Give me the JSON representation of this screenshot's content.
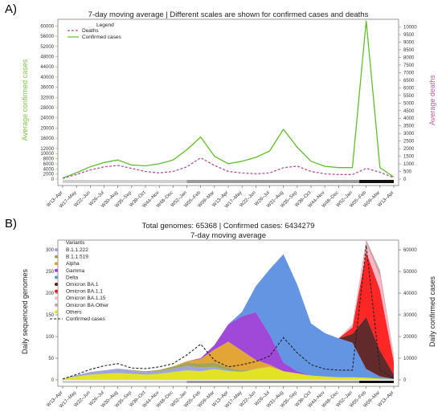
{
  "chart_data": [
    {
      "panel_label": "A)",
      "type": "line",
      "title": "7-day moving average | Different scales are shown for confirmed cases and deaths",
      "ylabel_left": "Average confirmed cases",
      "ylabel_right": "Average deaths",
      "ylim_left": [
        0,
        62000
      ],
      "ylim_right": [
        0,
        10400
      ],
      "yticks_left": [
        "0",
        "2000",
        "4000",
        "6000",
        "8000",
        "10000",
        "12000",
        "16000",
        "20000",
        "24000",
        "28000",
        "32000",
        "36000",
        "40000",
        "44000",
        "48000",
        "52000",
        "56000",
        "60000"
      ],
      "yticks_right": [
        "0",
        "500",
        "1000",
        "1500",
        "2000",
        "2500",
        "3000",
        "3500",
        "4000",
        "4500",
        "5000",
        "5500",
        "6000",
        "6500",
        "7000",
        "7500",
        "8000",
        "8500",
        "9000",
        "9500",
        "10000"
      ],
      "x_ticks": [
        "W13–Apr",
        "W17–May",
        "W22–Jun",
        "W26–Jul",
        "W30–Aug",
        "W35–Sep",
        "W39–Oct",
        "W44–Nov",
        "W48–Dec",
        "W52–Jan",
        "W05–Feb",
        "W09–Mar",
        "W13–Apr",
        "W17–May",
        "W22–Jun",
        "W26–Jul",
        "W31–Aug",
        "W35–Sep",
        "W39–Oct",
        "W44–Nov",
        "W48–Dec",
        "W52–Jan",
        "W05–Feb",
        "W09–Mar",
        "W13–Apr"
      ],
      "legend": {
        "title": "Legend",
        "position": "top-left",
        "entries": [
          "Deaths",
          "Confirmed cases"
        ]
      },
      "colors": {
        "confirmed": "#5fbf2a",
        "deaths": "#b0559a",
        "left_axis": "#7dc443",
        "right_axis": "#c25ba6"
      },
      "series": [
        {
          "name": "Confirmed cases",
          "axis": "left",
          "style": "solid",
          "x": [
            0,
            1,
            2,
            3,
            4,
            5,
            6,
            7,
            8,
            9,
            10,
            11,
            12,
            13,
            14,
            15,
            16,
            17,
            18,
            19,
            20,
            21,
            22,
            23,
            24
          ],
          "values": [
            400,
            2500,
            4800,
            6500,
            7500,
            5500,
            5200,
            6000,
            7500,
            11500,
            16500,
            9000,
            6000,
            7000,
            8500,
            11000,
            19500,
            12500,
            7000,
            5000,
            4500,
            4500,
            62000,
            4500,
            800
          ]
        },
        {
          "name": "Deaths",
          "axis": "right",
          "style": "dashed",
          "x": [
            0,
            1,
            2,
            3,
            4,
            5,
            6,
            7,
            8,
            9,
            10,
            11,
            12,
            13,
            14,
            15,
            16,
            17,
            18,
            19,
            20,
            21,
            22,
            23,
            24
          ],
          "values": [
            50,
            300,
            600,
            800,
            900,
            700,
            500,
            400,
            500,
            800,
            1400,
            900,
            500,
            400,
            350,
            400,
            750,
            850,
            500,
            350,
            300,
            300,
            700,
            450,
            100
          ]
        }
      ]
    },
    {
      "panel_label": "B)",
      "type": "area",
      "title": "Total genomes: 65368 | Confirmed cases: 6434279",
      "subtitle": "7-day moving average",
      "ylabel_left": "Daily sequenced genomes",
      "ylabel_right": "Daily confirmed cases",
      "ylim_left": [
        0,
        315
      ],
      "ylim_right": [
        0,
        63000
      ],
      "yticks_left": [
        "0",
        "50",
        "100",
        "150",
        "200",
        "250",
        "300"
      ],
      "yticks_right": [
        "0",
        "10000",
        "20000",
        "30000",
        "40000",
        "50000",
        "60000"
      ],
      "x_ticks": [
        "W13–Apr",
        "W17–May",
        "W22–Jun",
        "W26–Jul",
        "W30–Aug",
        "W35–Sep",
        "W39–Oct",
        "W44–Nov",
        "W48–Dec",
        "W52–Jan",
        "W05–Feb",
        "W09–Mar",
        "W13–Apr",
        "W17–May",
        "W22–Jun",
        "W26–Jul",
        "W31–Aug",
        "W35–Sep",
        "W39–Oct",
        "W44–Nov",
        "W48–Dec",
        "W52–Jan",
        "W05–Feb",
        "W09–Mar",
        "W13–Apr"
      ],
      "legend": {
        "title": "Variants",
        "position": "top-left",
        "entries": [
          {
            "name": "B.1.1.222",
            "color": "#9aa0d8"
          },
          {
            "name": "B.1.1.519",
            "color": "#a0a050"
          },
          {
            "name": "Alpha",
            "color": "#e2a12b"
          },
          {
            "name": "Gamma",
            "color": "#9b3fd6"
          },
          {
            "name": "Delta",
            "color": "#5b8fe2"
          },
          {
            "name": "Omicron BA.1",
            "color": "#5a1f1f"
          },
          {
            "name": "Omicron BA.1.1",
            "color": "#ff1a1a"
          },
          {
            "name": "Omicron BA.1.15",
            "color": "#ffb3c6"
          },
          {
            "name": "Omicron BA.Other",
            "color": "#c8a0a0"
          },
          {
            "name": "Others",
            "color": "#e2e21a"
          },
          {
            "name": "Confirmed cases",
            "color": "#222222"
          }
        ]
      },
      "series": [
        {
          "name": "Others",
          "values": [
            3,
            8,
            12,
            14,
            16,
            14,
            12,
            14,
            18,
            22,
            20,
            25,
            20,
            18,
            25,
            30,
            20,
            15,
            10,
            8,
            6,
            6,
            5,
            3,
            2
          ]
        },
        {
          "name": "B.1.1.222",
          "values": [
            0,
            3,
            6,
            8,
            10,
            8,
            6,
            6,
            8,
            10,
            8,
            5,
            2,
            1,
            0,
            0,
            0,
            0,
            0,
            0,
            0,
            0,
            0,
            0,
            0
          ]
        },
        {
          "name": "B.1.1.519",
          "values": [
            0,
            0,
            0,
            0,
            0,
            1,
            2,
            3,
            5,
            8,
            10,
            10,
            6,
            3,
            1,
            0,
            0,
            0,
            0,
            0,
            0,
            0,
            0,
            0,
            0
          ]
        },
        {
          "name": "Alpha",
          "values": [
            0,
            0,
            0,
            0,
            0,
            0,
            0,
            0,
            0,
            3,
            10,
            30,
            60,
            45,
            20,
            5,
            0,
            0,
            0,
            0,
            0,
            0,
            0,
            0,
            0
          ]
        },
        {
          "name": "Gamma",
          "values": [
            0,
            0,
            0,
            0,
            0,
            0,
            0,
            0,
            0,
            0,
            2,
            10,
            40,
            80,
            110,
            70,
            20,
            5,
            0,
            0,
            0,
            0,
            0,
            0,
            0
          ]
        },
        {
          "name": "Delta",
          "values": [
            0,
            0,
            0,
            0,
            0,
            0,
            0,
            0,
            0,
            0,
            0,
            0,
            0,
            10,
            60,
            150,
            250,
            200,
            120,
            100,
            90,
            80,
            20,
            5,
            0
          ]
        },
        {
          "name": "Omicron BA.1",
          "values": [
            0,
            0,
            0,
            0,
            0,
            0,
            0,
            0,
            0,
            0,
            0,
            0,
            0,
            0,
            0,
            0,
            0,
            0,
            0,
            0,
            0,
            20,
            120,
            60,
            10
          ]
        },
        {
          "name": "Omicron BA.1.1",
          "values": [
            0,
            0,
            0,
            0,
            0,
            0,
            0,
            0,
            0,
            0,
            0,
            0,
            0,
            0,
            0,
            0,
            0,
            0,
            0,
            0,
            0,
            15,
            150,
            140,
            30
          ]
        },
        {
          "name": "Omicron BA.1.15",
          "values": [
            0,
            0,
            0,
            0,
            0,
            0,
            0,
            0,
            0,
            0,
            0,
            0,
            0,
            0,
            0,
            0,
            0,
            0,
            0,
            0,
            0,
            5,
            20,
            30,
            10
          ]
        },
        {
          "name": "Omicron BA.Other",
          "values": [
            0,
            0,
            0,
            0,
            0,
            0,
            0,
            0,
            0,
            0,
            0,
            0,
            0,
            0,
            0,
            0,
            0,
            0,
            0,
            0,
            0,
            2,
            8,
            15,
            5
          ]
        }
      ],
      "line_series": {
        "name": "Confirmed cases",
        "axis": "right",
        "style": "dashed",
        "values": [
          400,
          2500,
          4800,
          6500,
          7500,
          5500,
          5200,
          6000,
          7500,
          11500,
          16500,
          9000,
          6000,
          7000,
          8500,
          11000,
          19500,
          12500,
          7000,
          5000,
          4500,
          4500,
          62000,
          4500,
          800
        ]
      }
    }
  ]
}
